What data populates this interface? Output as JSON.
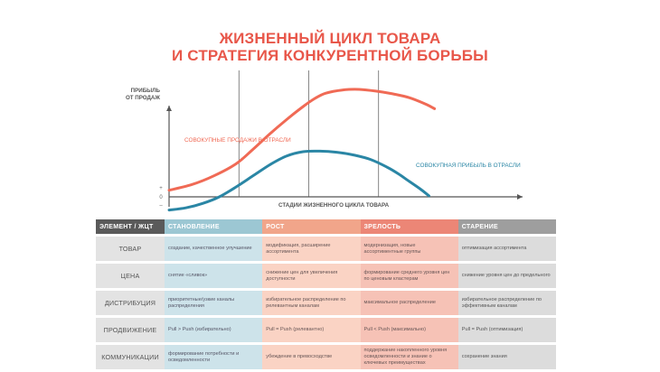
{
  "title_line1": "ЖИЗНЕННЫЙ ЦИКЛ ТОВАРА",
  "title_line2": "И СТРАТЕГИЯ КОНКУРЕНТНОЙ БОРЬБЫ",
  "colors": {
    "title": "#e8574a",
    "sales": "#f06a55",
    "profit": "#2a86a5",
    "axis": "#555555",
    "stage_lines": "#555555"
  },
  "chart_data": {
    "type": "line",
    "ylabel_line1": "ПРИБЫЛЬ",
    "ylabel_line2": "ОТ ПРОДАЖ",
    "xlabel": "СТАДИИ ЖИЗНЕННОГО ЦИКЛА ТОВАРА",
    "y_ticks": [
      "+",
      "0",
      "–"
    ],
    "x_range": [
      0,
      100
    ],
    "y_range": [
      -1.5,
      10
    ],
    "stage_boundaries": [
      25,
      50,
      75
    ],
    "series": [
      {
        "name": "СОВОКУПНЫЕ ПРОДАЖИ В ОТРАСЛИ",
        "color": "#f06a55",
        "x": [
          0,
          8,
          16,
          24,
          30,
          36,
          42,
          48,
          52,
          56,
          62,
          68,
          74,
          80,
          86,
          92,
          95
        ],
        "y": [
          0.6,
          1.1,
          1.9,
          3.0,
          4.3,
          5.7,
          7.0,
          8.2,
          8.9,
          9.4,
          9.7,
          9.75,
          9.6,
          9.35,
          9.0,
          8.4,
          8.0
        ]
      },
      {
        "name": "СОВОКУПНАЯ ПРИБЫЛЬ В ОТРАСЛИ",
        "color": "#2a86a5",
        "x": [
          0,
          6,
          12,
          18,
          24,
          30,
          36,
          42,
          48,
          54,
          60,
          66,
          72,
          78,
          82,
          86,
          90,
          93
        ],
        "y": [
          -1.2,
          -1.0,
          -0.6,
          0.0,
          0.9,
          1.9,
          2.9,
          3.7,
          4.1,
          4.15,
          4.05,
          3.8,
          3.4,
          2.7,
          2.1,
          1.4,
          0.7,
          0.1
        ]
      }
    ]
  },
  "table": {
    "headers": [
      "ЭЛЕМЕНТ / ЖЦТ",
      "СТАНОВЛЕНИЕ",
      "РОСТ",
      "ЗРЕЛОСТЬ",
      "СТАРЕНИЕ"
    ],
    "rows": [
      {
        "label": "ТОВАР",
        "cells": [
          "создание, качественное улучшение",
          "модификация, расширение ассортимента",
          "модернизация, новые ассортиментные группы",
          "оптимизация ассортимента"
        ]
      },
      {
        "label": "ЦЕНА",
        "cells": [
          "снятие «сливок»",
          "снижение цен для увеличения доступности",
          "формирование среднего уровня цен по ценовым кластерам",
          "снижение уровня цен до предельного"
        ]
      },
      {
        "label": "ДИСТРИБУЦИЯ",
        "cells": [
          "приоритетные/узкие каналы распределения",
          "избирательное распределение по релевантным каналам",
          "максимальное распределение",
          "избирательное распределение по эффективным каналам"
        ]
      },
      {
        "label": "ПРОДВИЖЕНИЕ",
        "cells": [
          "Pull > Push (избирательно)",
          "Pull = Push (релевантно)",
          "Pull < Push (максимально)",
          "Pull = Push (оптимизация)"
        ]
      },
      {
        "label": "КОММУНИКАЦИИ",
        "cells": [
          "формирование потребности и осведомленности",
          "убеждение в превосходстве",
          "поддержание накопленного уровня осведомленности и знание о ключевых преимуществах",
          "сохранение знания"
        ]
      }
    ]
  }
}
